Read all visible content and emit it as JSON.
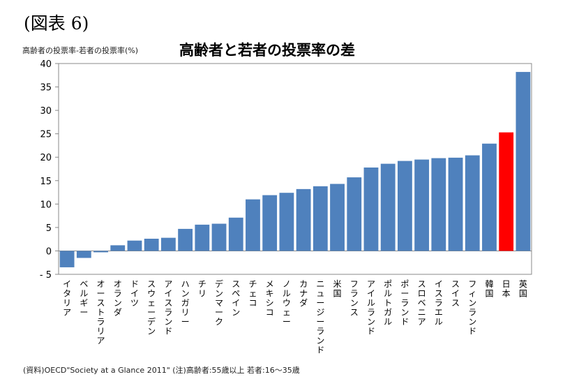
{
  "figure_label": "(図表 6)",
  "source_note": "(資料)OECD\"Society at a Glance 2011\" (注)高齢者:55歳以上 若者:16〜35歳",
  "colors": {
    "bar": "#4F81BD",
    "highlight": "#FF0000"
  },
  "chart_data": {
    "type": "bar",
    "title": "高齢者と若者の投票率の差",
    "ylabel": "高齢者の投票率-若者の投票率(%)",
    "xlabel": "",
    "ylim": [
      -5,
      40
    ],
    "yticks": [
      -5,
      0,
      5,
      10,
      15,
      20,
      25,
      30,
      35,
      40
    ],
    "ytick_labels": [
      "- 5",
      "0",
      "5",
      "10",
      "15",
      "20",
      "25",
      "30",
      "35",
      "40"
    ],
    "grid": false,
    "highlight_category": "日本",
    "categories": [
      "イタリア",
      "ベルギー",
      "オーストラリア",
      "オランダ",
      "ドイツ",
      "スウェーデン",
      "アイスランド",
      "ハンガリー",
      "チリ",
      "デンマーク",
      "スペイン",
      "チェコ",
      "メキシコ",
      "ノルウェー",
      "カナダ",
      "ニュージーランド",
      "米国",
      "フランス",
      "アイルランド",
      "ポルトガル",
      "ポーランド",
      "スロベニア",
      "イスラエル",
      "スイス",
      "フィンランド",
      "韓国",
      "日本",
      "英国"
    ],
    "values": [
      -3.5,
      -1.5,
      -0.3,
      1.2,
      2.2,
      2.6,
      2.8,
      4.7,
      5.6,
      5.8,
      7.1,
      11.0,
      11.9,
      12.4,
      13.2,
      13.8,
      14.3,
      15.7,
      17.8,
      18.6,
      19.2,
      19.5,
      19.8,
      19.9,
      20.4,
      22.9,
      25.3,
      38.2
    ]
  }
}
